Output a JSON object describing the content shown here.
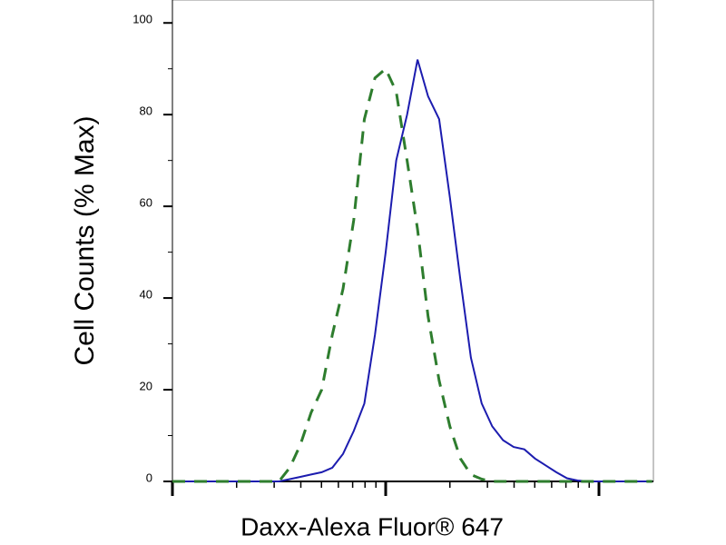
{
  "chart_data": {
    "type": "line",
    "xlabel": "Daxx-Alexa Fluor® 647",
    "ylabel": "Cell Counts (% Max)",
    "xscale": "log",
    "xlim": [
      10,
      1800
    ],
    "xticks": [
      10,
      100,
      1000
    ],
    "ylim": [
      0,
      105
    ],
    "yticks": [
      0,
      20,
      40,
      60,
      80,
      100
    ],
    "x": [
      10,
      11.2,
      12.6,
      14.1,
      15.8,
      17.8,
      20,
      22.4,
      25.1,
      28.2,
      31.6,
      35.5,
      39.8,
      44.7,
      50.1,
      56.2,
      63.1,
      70.8,
      79.4,
      89.1,
      100,
      112,
      126,
      141,
      158,
      178,
      200,
      224,
      251,
      282,
      316,
      355,
      398,
      447,
      501,
      562,
      631,
      708,
      794,
      891,
      1000,
      1122,
      1259,
      1413,
      1585,
      1778
    ],
    "series": [
      {
        "color": "#1c1caf",
        "line_style": "solid",
        "values": [
          0,
          0,
          0,
          0,
          0,
          0,
          0,
          0,
          0,
          0,
          0,
          0.5,
          1,
          1.5,
          2,
          3,
          6,
          11,
          17,
          32,
          50,
          70,
          80,
          92,
          84,
          79,
          62,
          44,
          27,
          17,
          12,
          9,
          7.5,
          7,
          5,
          3.5,
          2,
          0.7,
          0.2,
          0,
          0,
          0,
          0,
          0,
          0,
          0
        ]
      },
      {
        "color": "#2e7d2e",
        "line_style": "dashed",
        "values": [
          0,
          0,
          0,
          0,
          0,
          0,
          0,
          0,
          0,
          0,
          0,
          3,
          8,
          15,
          20,
          32,
          42,
          57,
          79,
          88,
          90,
          85,
          70,
          55,
          36,
          22,
          12,
          5,
          1.5,
          0.5,
          0,
          0,
          0,
          0,
          0,
          0,
          0,
          0,
          0,
          0,
          0,
          0,
          0,
          0,
          0,
          0
        ]
      }
    ]
  }
}
